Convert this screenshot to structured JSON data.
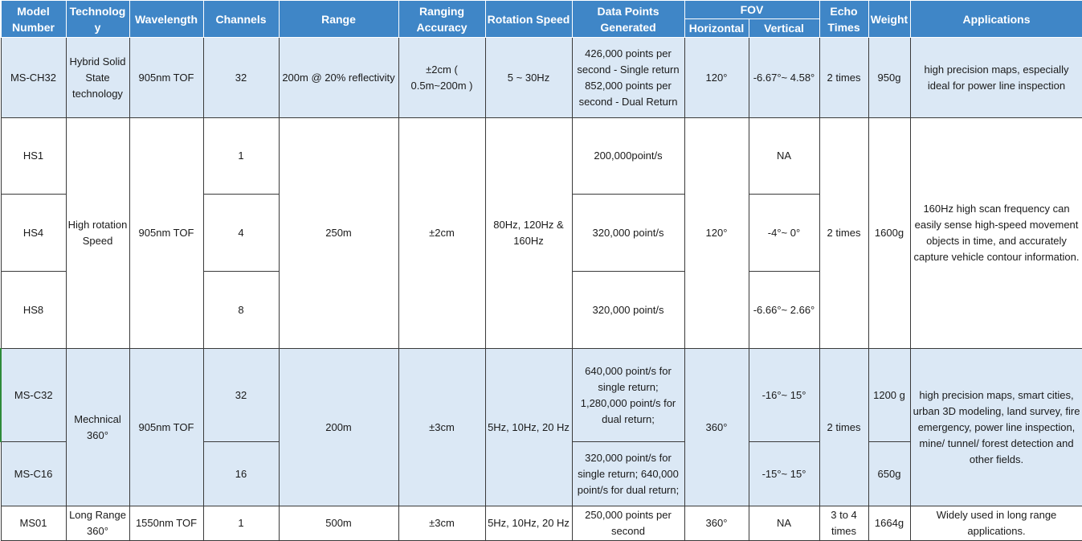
{
  "headers": {
    "model_number": "Model Number",
    "technology": "Technology",
    "wavelength": "Wavelength",
    "channels": "Channels",
    "range": "Range",
    "ranging_accuracy": "Ranging Accuracy",
    "rotation_speed": "Rotation Speed",
    "data_points": "Data Points Generated",
    "fov": "FOV",
    "fov_horizontal": "Horizontal",
    "fov_vertical": "Vertical",
    "echo_times": "Echo Times",
    "weight": "Weight",
    "applications": "Applications"
  },
  "rows": {
    "ms_ch32": {
      "model": "MS-CH32",
      "technology": "Hybrid Solid State technology",
      "wavelength": "905nm TOF",
      "channels": "32",
      "range": "200m @ 20% reflectivity",
      "accuracy": "±2cm ( 0.5m~200m )",
      "rotation": "5 ~ 30Hz",
      "data_points": "426,000 points per second - Single return 852,000 points per second - Dual Return",
      "fov_h": "120°",
      "fov_v": "-6.67°~ 4.58°",
      "echo": "2 times",
      "weight": "950g",
      "applications": "high precision maps, especially ideal for power line inspection"
    },
    "hs_group": {
      "technology": "High rotation Speed",
      "wavelength": "905nm TOF",
      "range": "250m",
      "accuracy": "±2cm",
      "rotation": "80Hz, 120Hz & 160Hz",
      "fov_h": "120°",
      "echo": "2 times",
      "weight": "1600g",
      "applications": "160Hz high scan frequency can easily sense high-speed movement objects in time, and accurately capture vehicle contour information."
    },
    "hs1": {
      "model": "HS1",
      "channels": "1",
      "data_points": "200,000point/s",
      "fov_v": "NA"
    },
    "hs4": {
      "model": "HS4",
      "channels": "4",
      "data_points": "320,000 point/s",
      "fov_v": "-4°~ 0°"
    },
    "hs8": {
      "model": "HS8",
      "channels": "8",
      "data_points": "320,000 point/s",
      "fov_v": "-6.66°~ 2.66°"
    },
    "mc_group": {
      "technology": "Mechnical 360°",
      "wavelength": "905nm TOF",
      "range": "200m",
      "accuracy": "±3cm",
      "rotation": "5Hz, 10Hz, 20 Hz",
      "fov_h": "360°",
      "echo": "2 times",
      "applications": "high precision maps, smart cities, urban 3D modeling, land survey, fire emergency, power line inspection, mine/ tunnel/ forest detection and other fields."
    },
    "ms_c32": {
      "model": "MS-C32",
      "channels": "32",
      "data_points": "640,000 point/s for single return; 1,280,000 point/s for dual return;",
      "fov_v": "-16°~ 15°",
      "weight": "1200 g"
    },
    "ms_c16": {
      "model": "MS-C16",
      "channels": "16",
      "data_points": "320,000 point/s for single return; 640,000 point/s for dual return;",
      "fov_v": "-15°~ 15°",
      "weight": "650g"
    },
    "ms01": {
      "model": "MS01",
      "technology": "Long Range 360°",
      "wavelength": "1550nm TOF",
      "channels": "1",
      "range": "500m",
      "accuracy": "±3cm",
      "rotation": "5Hz, 10Hz, 20 Hz",
      "data_points": "250,000 points per second",
      "fov_h": "360°",
      "fov_v": "NA",
      "echo": "3 to 4 times",
      "weight": "1664g",
      "applications": "Widely used in long range applications."
    }
  }
}
